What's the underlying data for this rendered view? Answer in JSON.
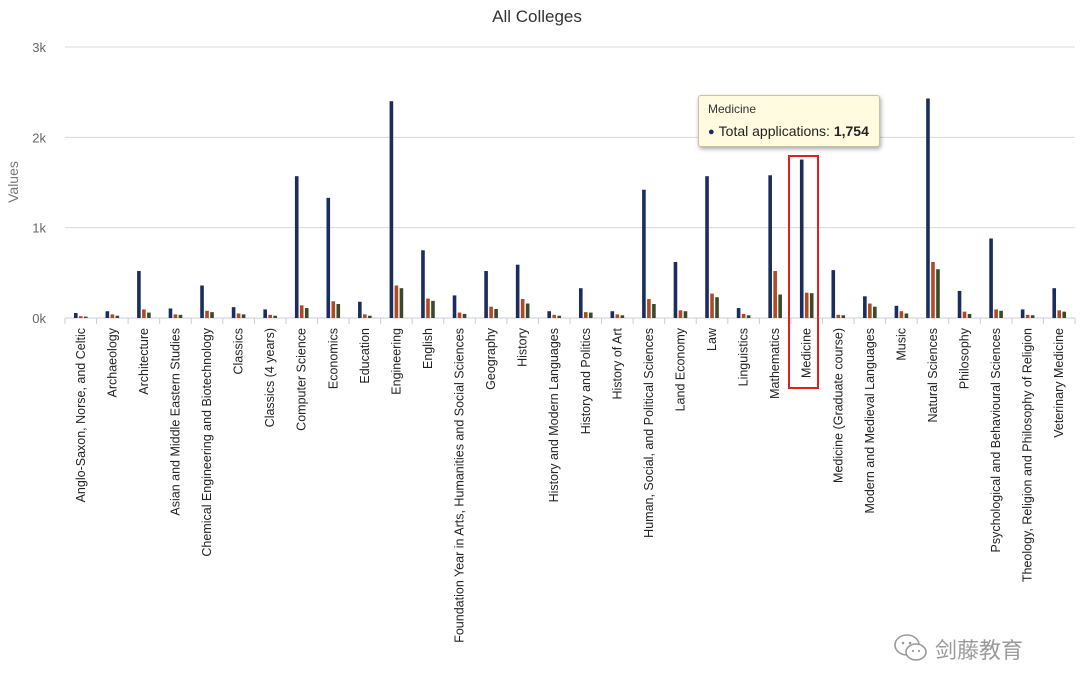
{
  "chart_data": {
    "type": "bar",
    "title": "All Colleges",
    "ylabel": "Values",
    "xlabel": "",
    "ylim": [
      0,
      3000
    ],
    "yticks": [
      {
        "value": 0,
        "label": "0k"
      },
      {
        "value": 1000,
        "label": "1k"
      },
      {
        "value": 2000,
        "label": "2k"
      },
      {
        "value": 3000,
        "label": "3k"
      }
    ],
    "grid": true,
    "categories": [
      "Anglo-Saxon, Norse, and Celtic",
      "Archaeology",
      "Architecture",
      "Asian and Middle Eastern Studies",
      "Chemical Engineering and Biotechnology",
      "Classics",
      "Classics (4 years)",
      "Computer Science",
      "Economics",
      "Education",
      "Engineering",
      "English",
      "Foundation Year in Arts, Humanities and Social Sciences",
      "Geography",
      "History",
      "History and Modern Languages",
      "History and Politics",
      "History of Art",
      "Human, Social, and Political Sciences",
      "Land Economy",
      "Law",
      "Linguistics",
      "Mathematics",
      "Medicine",
      "Medicine (Graduate course)",
      "Modern and Medieval Languages",
      "Music",
      "Natural Sciences",
      "Philosophy",
      "Psychological and Behavioural Sciences",
      "Theology, Religion and Philosophy of Religion",
      "Veterinary Medicine"
    ],
    "series": [
      {
        "color": "#1b2d5c",
        "values": [
          55,
          75,
          520,
          105,
          360,
          120,
          95,
          1570,
          1330,
          180,
          2400,
          750,
          250,
          520,
          590,
          75,
          330,
          75,
          1420,
          620,
          1570,
          110,
          1580,
          1754,
          530,
          240,
          135,
          2430,
          300,
          880,
          95,
          330
        ]
      },
      {
        "color": "#b04a22",
        "values": [
          20,
          40,
          95,
          40,
          80,
          50,
          35,
          140,
          185,
          40,
          360,
          215,
          60,
          125,
          210,
          35,
          65,
          40,
          210,
          85,
          270,
          45,
          520,
          280,
          35,
          160,
          75,
          620,
          70,
          95,
          35,
          85
        ]
      },
      {
        "color": "#3b4a2a",
        "values": [
          15,
          25,
          60,
          35,
          65,
          40,
          25,
          110,
          155,
          25,
          330,
          190,
          45,
          100,
          160,
          25,
          60,
          30,
          155,
          75,
          230,
          30,
          260,
          275,
          30,
          125,
          50,
          540,
          45,
          80,
          30,
          70
        ]
      }
    ],
    "tooltip": {
      "category": "Medicine",
      "series_label": "Total applications:",
      "value": "1,754"
    },
    "highlighted_category": "Medicine"
  },
  "watermark": {
    "text": "剑藤教育",
    "icon": "wechat-icon"
  }
}
